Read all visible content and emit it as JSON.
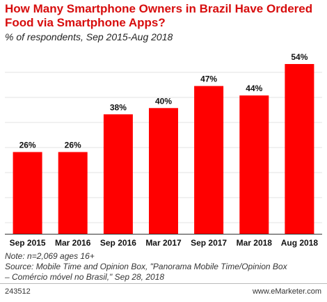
{
  "chart_data": {
    "type": "bar",
    "title": "How Many Smartphone Owners in Brazil Have Ordered Food via Smartphone Apps?",
    "subtitle": "% of respondents, Sep 2015-Aug 2018",
    "categories": [
      "Sep 2015",
      "Mar 2016",
      "Sep 2016",
      "Mar 2017",
      "Sep 2017",
      "Mar 2018",
      "Aug 2018"
    ],
    "values": [
      26,
      26,
      38,
      40,
      47,
      44,
      54
    ],
    "value_labels": [
      "26%",
      "26%",
      "38%",
      "40%",
      "47%",
      "44%",
      "54%"
    ],
    "ylim": [
      0,
      54
    ],
    "grid": true,
    "bar_color": "#ff0000"
  },
  "notes": {
    "note": "Note: n=2,069 ages 16+",
    "source_line1": "Source: Mobile Time and Opinion Box, \"Panorama Mobile Time/Opinion Box",
    "source_line2": "– Comércio móvel no Brasil,\" Sep 28, 2018"
  },
  "footer": {
    "id": "243512",
    "brand": "www.eMarketer.com"
  }
}
